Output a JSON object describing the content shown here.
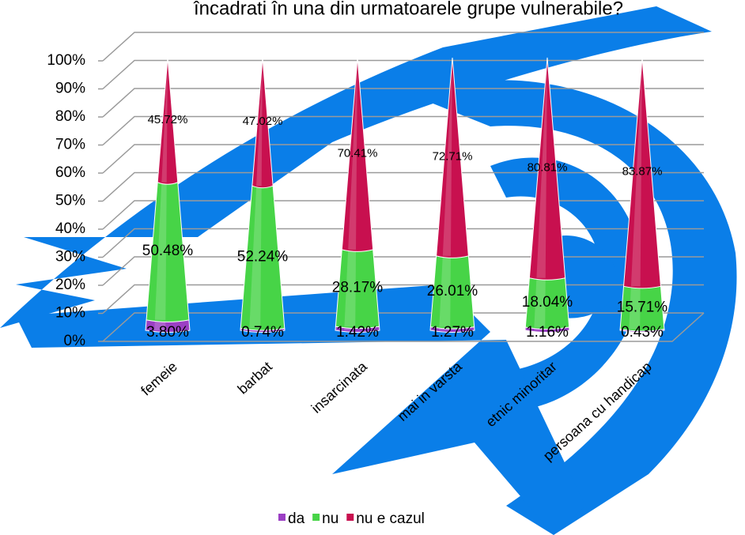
{
  "chart_data": {
    "type": "cone-stacked",
    "title": "încadrati în una din urmatoarele grupe vulnerabile?",
    "categories": [
      "femeie",
      "barbat",
      "insarcinata",
      "mai in varsta",
      "etnic minoritar",
      "persoana cu handicap"
    ],
    "series": [
      {
        "name": "da",
        "color": "#9b3fc4",
        "values": [
          3.8,
          0.74,
          1.42,
          1.27,
          1.16,
          0.43
        ],
        "value_labels": [
          "3.80%",
          "0.74%",
          "1.42%",
          "1.27%",
          "1.16%",
          "0.43%"
        ]
      },
      {
        "name": "nu",
        "color": "#47d447",
        "values": [
          50.48,
          52.24,
          28.17,
          26.01,
          18.04,
          15.71
        ],
        "value_labels": [
          "50.48%",
          "52.24%",
          "28.17%",
          "26.01%",
          "18.04%",
          "15.71%"
        ]
      },
      {
        "name": "nu e cazul",
        "color": "#c8104f",
        "values": [
          45.72,
          47.02,
          70.41,
          72.71,
          80.81,
          83.87
        ],
        "value_labels": [
          "45.72%",
          "47.02%",
          "70.41%",
          "72.71%",
          "80.81%",
          "83.87%"
        ]
      }
    ],
    "ylim": [
      0,
      100
    ],
    "yticks": [
      {
        "value": 0,
        "label": "0%"
      },
      {
        "value": 10,
        "label": "10%"
      },
      {
        "value": 20,
        "label": "20%"
      },
      {
        "value": 30,
        "label": "30%"
      },
      {
        "value": 40,
        "label": "40%"
      },
      {
        "value": 50,
        "label": "50%"
      },
      {
        "value": 60,
        "label": "60%"
      },
      {
        "value": 70,
        "label": "70%"
      },
      {
        "value": 80,
        "label": "80%"
      },
      {
        "value": 90,
        "label": "90%"
      },
      {
        "value": 100,
        "label": "100%"
      }
    ],
    "grid": true,
    "legend": "bottom"
  }
}
